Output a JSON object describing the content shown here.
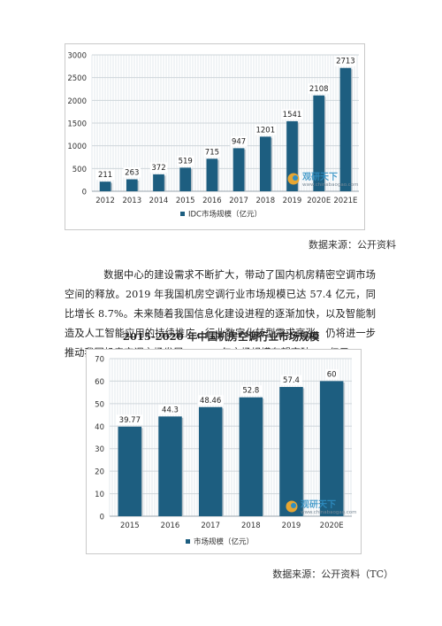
{
  "chart_data": [
    {
      "type": "bar",
      "title": "",
      "categories": [
        "2012",
        "2013",
        "2014",
        "2015",
        "2016",
        "2017",
        "2018",
        "2019",
        "2020E",
        "2021E"
      ],
      "series": [
        {
          "name": "IDC市场规模（亿元）",
          "values": [
            211,
            263,
            372,
            519,
            715,
            947,
            1201,
            1541,
            2108,
            2713
          ]
        }
      ],
      "ylim": [
        0,
        3000
      ],
      "yticks": [
        "0",
        "500",
        "1000",
        "1500",
        "2000",
        "2500",
        "3000"
      ],
      "grid": true,
      "legend_position": "bottom",
      "watermark": "观研天下 www.chinabaogao.com",
      "bar_color": "#1d5e80"
    },
    {
      "type": "bar",
      "title": "2015-2020 年中国机房空调行业市场规模",
      "categories": [
        "2015",
        "2016",
        "2017",
        "2018",
        "2019",
        "2020E"
      ],
      "series": [
        {
          "name": "市场规模（亿元）",
          "values": [
            39.77,
            44.3,
            48.46,
            52.8,
            57.4,
            60
          ]
        }
      ],
      "ylim": [
        0,
        70
      ],
      "yticks": [
        "0",
        "10",
        "20",
        "30",
        "40",
        "50",
        "60",
        "70"
      ],
      "grid": true,
      "legend_position": "bottom",
      "watermark": "观研天下 www.chinabaogao.com",
      "bar_color": "#1d5e80"
    }
  ],
  "source1": "数据来源：公开资料",
  "paragraph": "数据中心的建设需求不断扩大，带动了国内机房精密空调市场空间的释放。2019 年我国机房空调行业市场规模已达 57.4 亿元，同比增长 8.7%。未来随着我国信息化建设进程的逐渐加快，以及智能制造及人工智能应用的持续推广，行业数字化转型需求高涨，仍将进一步推动我国机房空调市场发展，2020 年市场规模有望突破 60 亿元。",
  "source2": "数据来源：公开资料（TC）"
}
